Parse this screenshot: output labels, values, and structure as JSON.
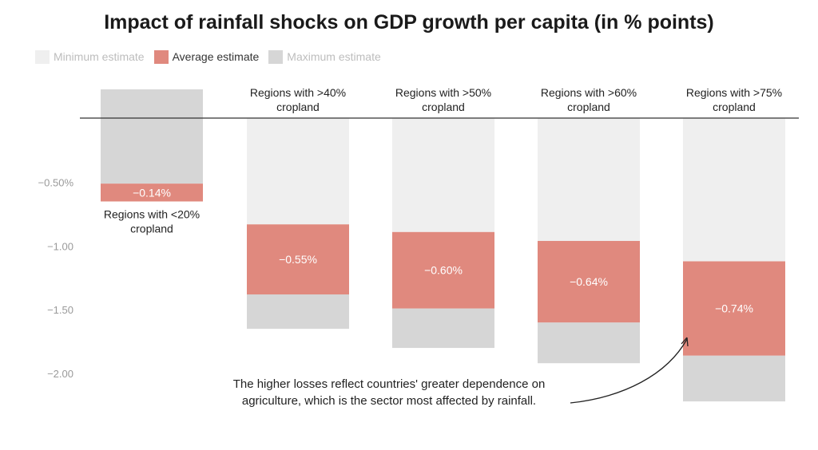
{
  "chart_data": {
    "type": "bar",
    "title": "Impact of rainfall shocks on GDP growth per capita (in % points)",
    "legend": [
      {
        "label": "Minimum estimate",
        "color": "#efefef"
      },
      {
        "label": "Average estimate",
        "color": "#e0897e"
      },
      {
        "label": "Maximum estimate",
        "color": "#d6d6d6"
      }
    ],
    "y_ticks": [
      {
        "value": -0.5,
        "label": "−0.50%"
      },
      {
        "value": -1.0,
        "label": "−1.00"
      },
      {
        "value": -1.5,
        "label": "−1.50"
      },
      {
        "value": -2.0,
        "label": "−2.00"
      }
    ],
    "ylim": [
      -2.27,
      0.23
    ],
    "categories": [
      {
        "name": "Regions with <20% cropland",
        "label_lines": [
          "Regions with <20%",
          "cropland"
        ],
        "label_position": "below",
        "min_end": -0.51,
        "avg_end": -0.65,
        "max_end": 0.23,
        "avg_label": "−0.14%"
      },
      {
        "name": "Regions with >40% cropland",
        "label_lines": [
          "Regions with >40%",
          "cropland"
        ],
        "label_position": "above",
        "min_end": -0.83,
        "avg_end": -1.38,
        "max_end": -1.65,
        "avg_label": "−0.55%"
      },
      {
        "name": "Regions with >50% cropland",
        "label_lines": [
          "Regions with >50%",
          "cropland"
        ],
        "label_position": "above",
        "min_end": -0.89,
        "avg_end": -1.49,
        "max_end": -1.8,
        "avg_label": "−0.60%"
      },
      {
        "name": "Regions with >60% cropland",
        "label_lines": [
          "Regions with >60%",
          "cropland"
        ],
        "label_position": "above",
        "min_end": -0.96,
        "avg_end": -1.6,
        "max_end": -1.92,
        "avg_label": "−0.64%"
      },
      {
        "name": "Regions with >75% cropland",
        "label_lines": [
          "Regions with >75%",
          "cropland"
        ],
        "label_position": "above",
        "min_end": -1.12,
        "avg_end": -1.86,
        "max_end": -2.22,
        "avg_label": "−0.74%"
      }
    ],
    "annotation": {
      "lines": [
        "The higher losses reflect countries' greater dependence on",
        "agriculture, which is the sector most affected by rainfall."
      ],
      "target_category": 4
    },
    "colors": {
      "min": "#efefef",
      "avg": "#e0897e",
      "max": "#d6d6d6"
    }
  }
}
